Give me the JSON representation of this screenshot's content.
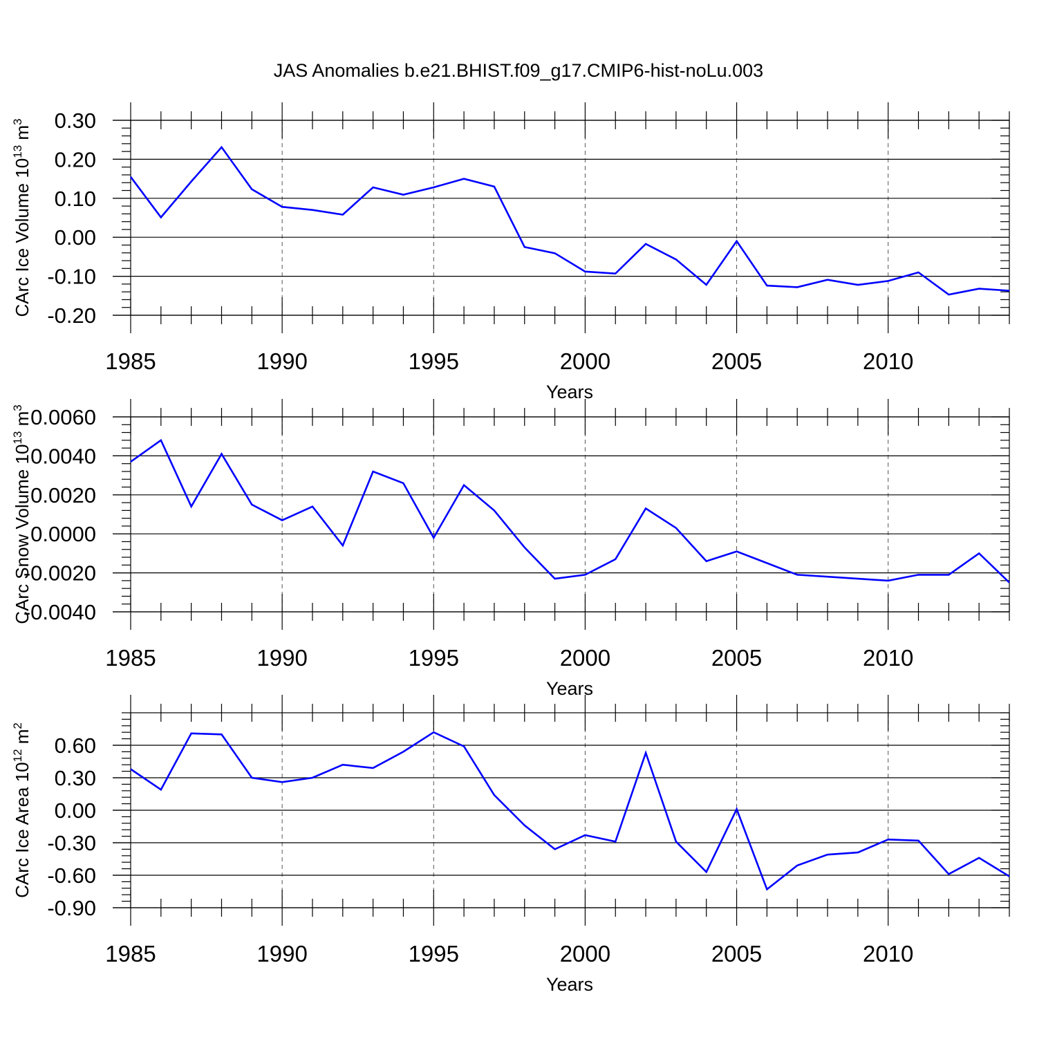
{
  "title": "JAS Anomalies b.e21.BHIST.f09_g17.CMIP6-hist-noLu.003",
  "line_color": "#0000ff",
  "chart_data": [
    {
      "type": "line",
      "title": "",
      "xlabel": "Years",
      "ylabel_parts": [
        "CArc Ice Volume 10",
        "13",
        " m",
        "3"
      ],
      "xlim": [
        1985,
        2014
      ],
      "ylim": [
        -0.2,
        0.3
      ],
      "xticks": [
        "1985",
        "1990",
        "1995",
        "2000",
        "2005",
        "2010"
      ],
      "yticks": [
        "0.30",
        "0.20",
        "0.10",
        "0.00",
        "-0.10",
        "-0.20"
      ],
      "ytick_values": [
        0.3,
        0.2,
        0.1,
        0.0,
        -0.1,
        -0.2
      ],
      "grid": "vertical dashed at x labels",
      "x": [
        1985,
        1986,
        1987,
        1988,
        1989,
        1990,
        1991,
        1992,
        1993,
        1994,
        1995,
        1996,
        1997,
        1998,
        1999,
        2000,
        2001,
        2002,
        2003,
        2004,
        2005,
        2006,
        2007,
        2008,
        2009,
        2010,
        2011,
        2012,
        2013,
        2014
      ],
      "y": [
        0.155,
        0.051,
        0.143,
        0.231,
        0.123,
        0.078,
        0.07,
        0.058,
        0.128,
        0.109,
        0.128,
        0.15,
        0.13,
        -0.025,
        -0.041,
        -0.088,
        -0.093,
        -0.017,
        -0.057,
        -0.122,
        -0.01,
        -0.124,
        -0.128,
        -0.109,
        -0.122,
        -0.112,
        -0.09,
        -0.147,
        -0.132,
        -0.137
      ]
    },
    {
      "type": "line",
      "title": "",
      "xlabel": "Years",
      "ylabel_parts": [
        "CArc Snow Volume 10",
        "13",
        " m",
        "3"
      ],
      "xlim": [
        1985,
        2014
      ],
      "ylim": [
        -0.004,
        0.006
      ],
      "xticks": [
        "1985",
        "1990",
        "1995",
        "2000",
        "2005",
        "2010"
      ],
      "yticks": [
        "0.0060",
        "0.0040",
        "0.0020",
        "0.0000",
        "-0.0020",
        "-0.0040"
      ],
      "ytick_values": [
        0.006,
        0.004,
        0.002,
        0.0,
        -0.002,
        -0.004
      ],
      "grid": "vertical dashed at x labels",
      "x": [
        1985,
        1986,
        1987,
        1988,
        1989,
        1990,
        1991,
        1992,
        1993,
        1994,
        1995,
        1996,
        1997,
        1998,
        1999,
        2000,
        2001,
        2002,
        2003,
        2004,
        2005,
        2006,
        2007,
        2008,
        2009,
        2010,
        2011,
        2012,
        2013,
        2014
      ],
      "y": [
        0.0037,
        0.0048,
        0.0014,
        0.0041,
        0.0015,
        0.0007,
        0.0014,
        -0.0006,
        0.0032,
        0.0026,
        -0.0002,
        0.0025,
        0.0012,
        -0.0007,
        -0.0023,
        -0.0021,
        -0.0013,
        0.0013,
        0.0003,
        -0.0014,
        -0.0009,
        -0.0015,
        -0.0021,
        -0.0022,
        -0.0023,
        -0.0024,
        -0.0021,
        -0.0021,
        -0.001,
        -0.0025
      ]
    },
    {
      "type": "line",
      "title": "",
      "xlabel": "Years",
      "ylabel_parts": [
        "CArc Ice Area 10",
        "12",
        " m",
        "2"
      ],
      "xlim": [
        1985,
        2014
      ],
      "ylim": [
        -0.9,
        0.9
      ],
      "xticks": [
        "1985",
        "1990",
        "1995",
        "2000",
        "2005",
        "2010"
      ],
      "yticks": [
        "0.60",
        "0.30",
        "0.00",
        "-0.30",
        "-0.60",
        "-0.90"
      ],
      "ytick_values": [
        0.6,
        0.3,
        0.0,
        -0.3,
        -0.6,
        -0.9
      ],
      "grid": "vertical dashed at x labels",
      "x": [
        1985,
        1986,
        1987,
        1988,
        1989,
        1990,
        1991,
        1992,
        1993,
        1994,
        1995,
        1996,
        1997,
        1998,
        1999,
        2000,
        2001,
        2002,
        2003,
        2004,
        2005,
        2006,
        2007,
        2008,
        2009,
        2010,
        2011,
        2012,
        2013,
        2014
      ],
      "y": [
        0.38,
        0.19,
        0.71,
        0.7,
        0.3,
        0.26,
        0.3,
        0.42,
        0.39,
        0.54,
        0.72,
        0.59,
        0.14,
        -0.14,
        -0.36,
        -0.23,
        -0.29,
        0.53,
        -0.29,
        -0.57,
        0.01,
        -0.73,
        -0.51,
        -0.41,
        -0.39,
        -0.27,
        -0.28,
        -0.59,
        -0.44,
        -0.61
      ]
    }
  ]
}
